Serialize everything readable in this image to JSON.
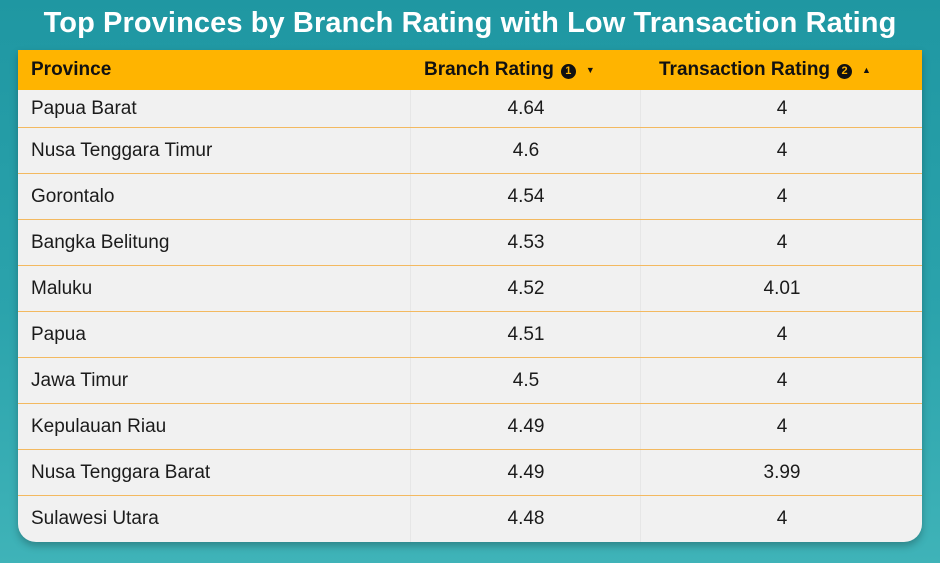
{
  "title": "Top Provinces by Branch Rating with Low Transaction Rating",
  "chart_data": {
    "type": "table",
    "title": "Top Provinces by Branch Rating with Low Transaction Rating",
    "columns": [
      {
        "label": "Province",
        "sort_priority": null,
        "sort_direction": null
      },
      {
        "label": "Branch Rating",
        "sort_priority": "1",
        "sort_direction": "descending"
      },
      {
        "label": "Transaction Rating",
        "sort_priority": "2",
        "sort_direction": "ascending"
      }
    ],
    "rows": [
      {
        "province": "Papua Barat",
        "branch_rating": "4.64",
        "transaction_rating": "4"
      },
      {
        "province": "Nusa Tenggara Timur",
        "branch_rating": "4.6",
        "transaction_rating": "4"
      },
      {
        "province": "Gorontalo",
        "branch_rating": "4.54",
        "transaction_rating": "4"
      },
      {
        "province": "Bangka Belitung",
        "branch_rating": "4.53",
        "transaction_rating": "4"
      },
      {
        "province": "Maluku",
        "branch_rating": "4.52",
        "transaction_rating": "4.01"
      },
      {
        "province": "Papua",
        "branch_rating": "4.51",
        "transaction_rating": "4"
      },
      {
        "province": "Jawa Timur",
        "branch_rating": "4.5",
        "transaction_rating": "4"
      },
      {
        "province": "Kepulauan Riau",
        "branch_rating": "4.49",
        "transaction_rating": "4"
      },
      {
        "province": "Nusa Tenggara Barat",
        "branch_rating": "4.49",
        "transaction_rating": "3.99"
      },
      {
        "province": "Sulawesi Utara",
        "branch_rating": "4.48",
        "transaction_rating": "4"
      }
    ]
  },
  "colors": {
    "background": "#2ba3ac",
    "header": "#ffb400",
    "row_bg": "#f1f1f1",
    "row_divider": "#f3b960"
  },
  "icons": {
    "sort_desc": "caret-down-icon",
    "sort_asc": "caret-up-icon"
  }
}
